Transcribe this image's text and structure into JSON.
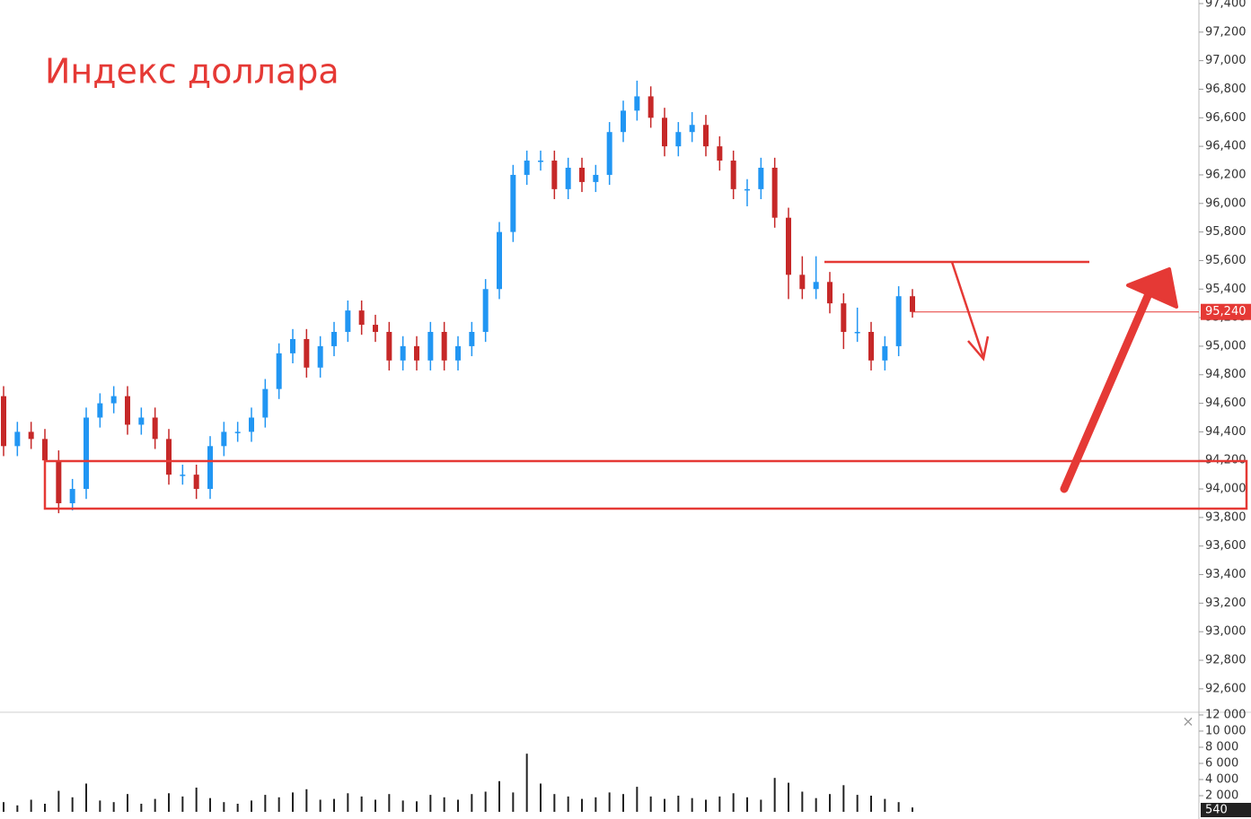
{
  "chart_data": {
    "type": "candlestick",
    "title": "Индекс доллара",
    "open": [
      94650,
      94300,
      94400,
      94350,
      94200,
      93900,
      94000,
      94500,
      94600,
      94650,
      94450,
      94500,
      94350,
      94100,
      94100,
      94000,
      94300,
      94400,
      94400,
      94500,
      94700,
      94950,
      95050,
      94850,
      95000,
      95100,
      95250,
      95150,
      95100,
      94900,
      95000,
      94900,
      95100,
      94900,
      95000,
      95100,
      95400,
      95800,
      96200,
      96300,
      96300,
      96100,
      96250,
      96150,
      96200,
      96500,
      96650,
      96750,
      96600,
      96400,
      96500,
      96550,
      96400,
      96300,
      96100,
      96100,
      96250,
      95900,
      95500,
      95400,
      95450,
      95300,
      95100,
      95100,
      94900,
      95000,
      95350
    ],
    "high": [
      94720,
      94470,
      94470,
      94420,
      94270,
      94070,
      94570,
      94670,
      94720,
      94720,
      94570,
      94570,
      94420,
      94170,
      94170,
      94370,
      94470,
      94470,
      94570,
      94770,
      95020,
      95120,
      95120,
      95070,
      95170,
      95320,
      95320,
      95220,
      95170,
      95070,
      95070,
      95170,
      95170,
      95070,
      95170,
      95470,
      95870,
      96270,
      96370,
      96370,
      96370,
      96320,
      96320,
      96270,
      96570,
      96720,
      96860,
      96820,
      96670,
      96570,
      96640,
      96620,
      96470,
      96370,
      96170,
      96320,
      96320,
      95970,
      95630,
      95630,
      95520,
      95370,
      95270,
      95170,
      95070,
      95420,
      95400
    ],
    "low": [
      94230,
      94230,
      94280,
      94130,
      93830,
      93850,
      93930,
      94430,
      94530,
      94380,
      94380,
      94280,
      94030,
      94030,
      93930,
      93930,
      94230,
      94330,
      94330,
      94430,
      94630,
      94880,
      94780,
      94780,
      94930,
      95030,
      95080,
      95030,
      94830,
      94830,
      94830,
      94830,
      94830,
      94830,
      94930,
      95030,
      95330,
      95730,
      96130,
      96230,
      96030,
      96030,
      96080,
      96080,
      96130,
      96430,
      96580,
      96530,
      96330,
      96330,
      96430,
      96330,
      96230,
      96030,
      95980,
      96030,
      95830,
      95330,
      95330,
      95330,
      95230,
      94980,
      95030,
      94830,
      94830,
      94930,
      95200
    ],
    "close": [
      94300,
      94400,
      94350,
      94200,
      93900,
      94000,
      94500,
      94600,
      94650,
      94450,
      94500,
      94350,
      94100,
      94100,
      94000,
      94300,
      94400,
      94400,
      94500,
      94700,
      94950,
      95050,
      94850,
      95000,
      95100,
      95250,
      95150,
      95100,
      94900,
      95000,
      94900,
      95100,
      94900,
      95000,
      95100,
      95400,
      95800,
      96200,
      96300,
      96300,
      96100,
      96250,
      96150,
      96200,
      96500,
      96650,
      96750,
      96600,
      96400,
      96500,
      96550,
      96400,
      96300,
      96100,
      96100,
      96250,
      95900,
      95500,
      95400,
      95450,
      95300,
      95100,
      95100,
      94900,
      95000,
      95350,
      95240
    ],
    "up_color": "#2196f3",
    "down_color": "#c62828",
    "ylim": [
      92442,
      97425
    ],
    "yticks": [
      {
        "value": 92600,
        "label": "92,600"
      },
      {
        "value": 92800,
        "label": "92,800"
      },
      {
        "value": 93000,
        "label": "93,000"
      },
      {
        "value": 93200,
        "label": "93,200"
      },
      {
        "value": 93400,
        "label": "93,400"
      },
      {
        "value": 93600,
        "label": "93,600"
      },
      {
        "value": 93800,
        "label": "93,800"
      },
      {
        "value": 94000,
        "label": "94,000"
      },
      {
        "value": 94200,
        "label": "94,200"
      },
      {
        "value": 94400,
        "label": "94,400"
      },
      {
        "value": 94600,
        "label": "94,600"
      },
      {
        "value": 94800,
        "label": "94,800"
      },
      {
        "value": 95000,
        "label": "95,000"
      },
      {
        "value": 95200,
        "label": "95,200"
      },
      {
        "value": 95400,
        "label": "95,400"
      },
      {
        "value": 95600,
        "label": "95,600"
      },
      {
        "value": 95800,
        "label": "95,800"
      },
      {
        "value": 96000,
        "label": "96,000"
      },
      {
        "value": 96200,
        "label": "96,200"
      },
      {
        "value": 96400,
        "label": "96,400"
      },
      {
        "value": 96600,
        "label": "96,600"
      },
      {
        "value": 96800,
        "label": "96,800"
      },
      {
        "value": 97000,
        "label": "97,000"
      },
      {
        "value": 97200,
        "label": "97,200"
      },
      {
        "value": 97400,
        "label": "97,400"
      }
    ],
    "last_price": {
      "value": 95240,
      "label": "95,240"
    },
    "volume": {
      "color": "#222222",
      "axis": "y2",
      "values": [
        1200,
        800,
        1500,
        1000,
        2600,
        1800,
        3500,
        1400,
        1200,
        2200,
        1000,
        1600,
        2300,
        1900,
        3000,
        1700,
        1200,
        1000,
        1400,
        2100,
        1800,
        2400,
        2800,
        1500,
        1600,
        2300,
        1900,
        1500,
        2200,
        1400,
        1300,
        2100,
        1800,
        1500,
        2200,
        2500,
        3800,
        2400,
        7200,
        3500,
        2200,
        1900,
        1600,
        1800,
        2400,
        2200,
        3100,
        1900,
        1600,
        2000,
        1700,
        1500,
        1900,
        2300,
        1800,
        1500,
        4200,
        3600,
        2500,
        1700,
        2200,
        3300,
        2100,
        2000,
        1600,
        1200,
        540
      ]
    },
    "y2lim": [
      0,
      12220
    ],
    "y2ticks": [
      {
        "value": 2000,
        "label": "2 000"
      },
      {
        "value": 4000,
        "label": "4 000"
      },
      {
        "value": 6000,
        "label": "6 000"
      },
      {
        "value": 8000,
        "label": "8 000"
      },
      {
        "value": 10000,
        "label": "10 000"
      },
      {
        "value": 12000,
        "label": "12 000"
      }
    ],
    "close_button": "×"
  }
}
